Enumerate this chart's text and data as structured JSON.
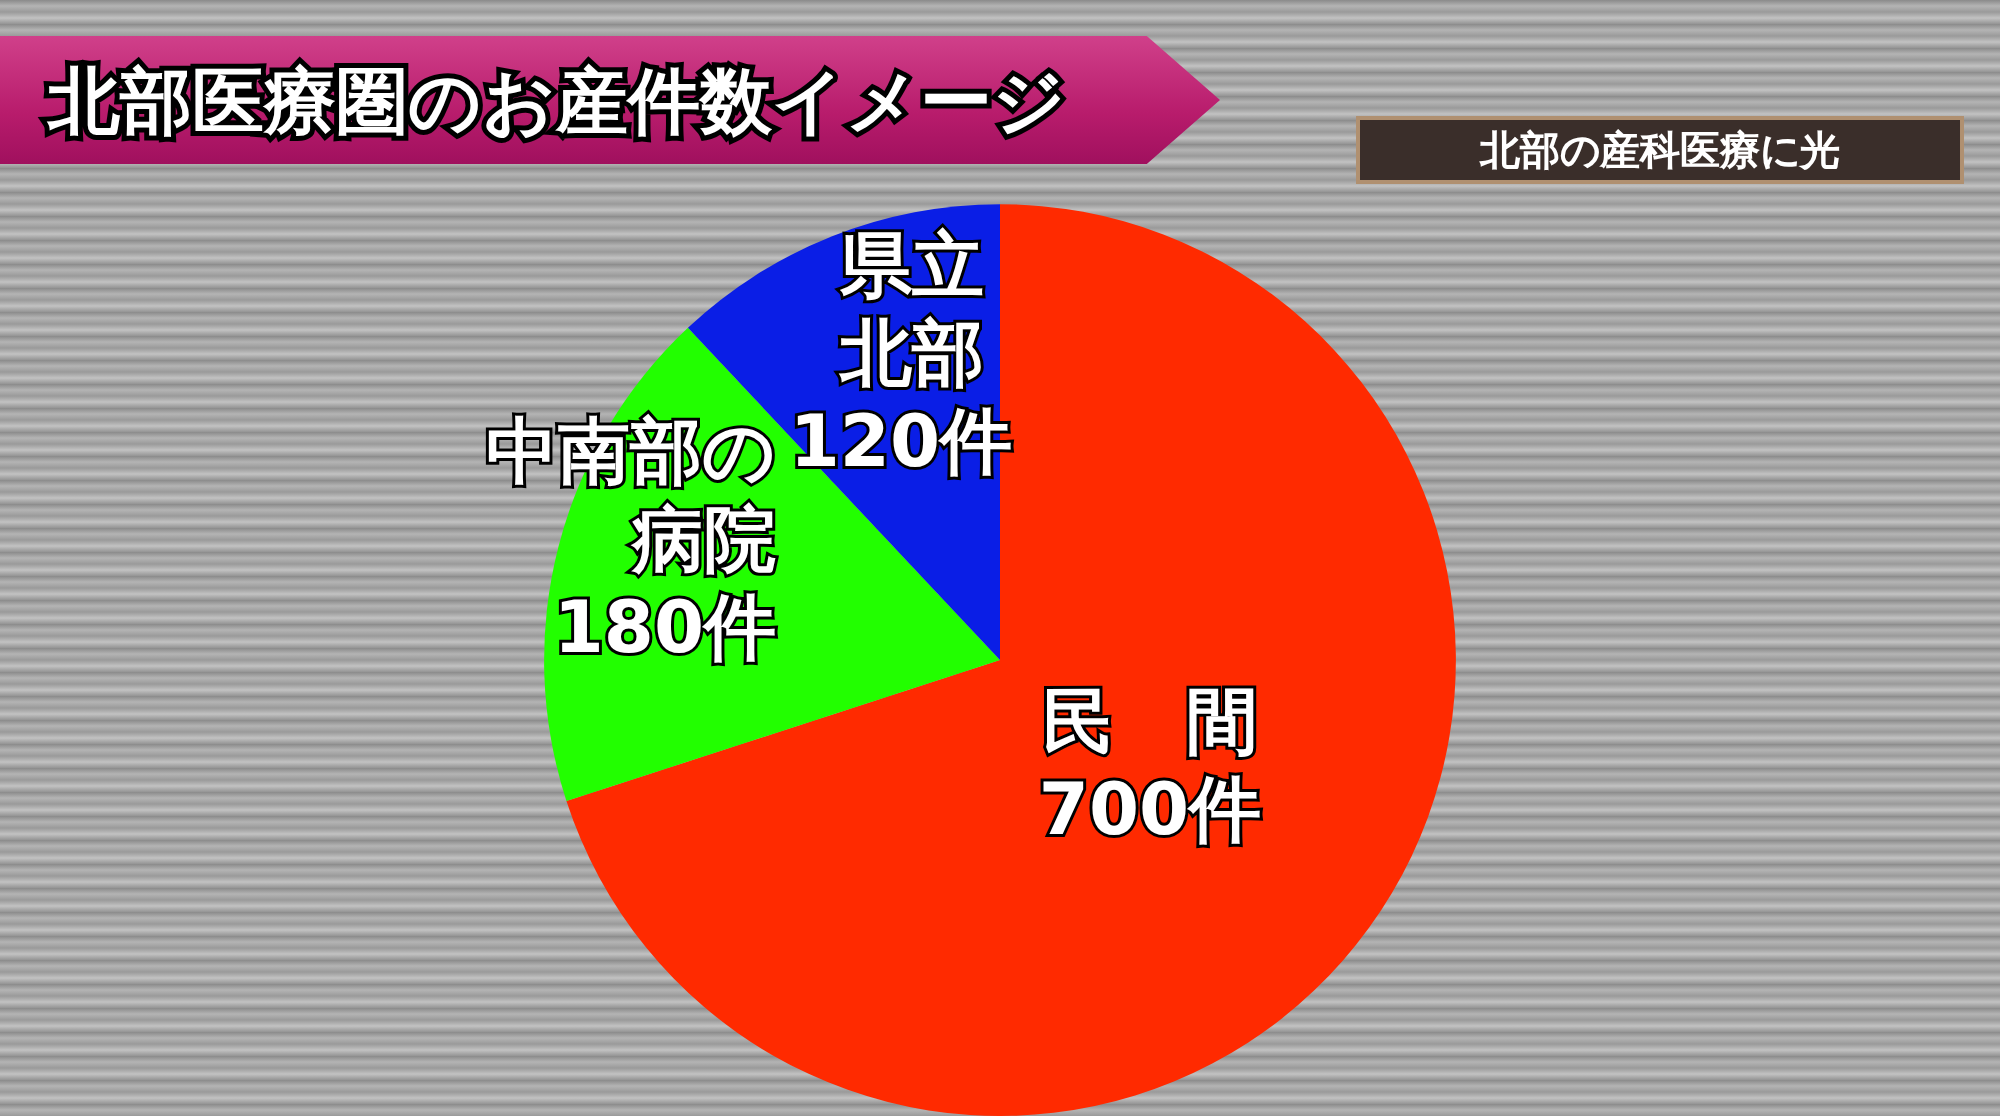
{
  "chart_data": {
    "type": "pie",
    "title": "北部医療圏のお産件数イメージ",
    "subtitle": "北部の産科医療に光",
    "categories": [
      "民　間",
      "中南部の病院",
      "県立北部"
    ],
    "values": [
      700,
      180,
      120
    ],
    "value_labels": [
      "700件",
      "180件",
      "120件"
    ],
    "colors": [
      "#ff2a00",
      "#22ff00",
      "#0a1ee6"
    ],
    "legend": false
  }
}
